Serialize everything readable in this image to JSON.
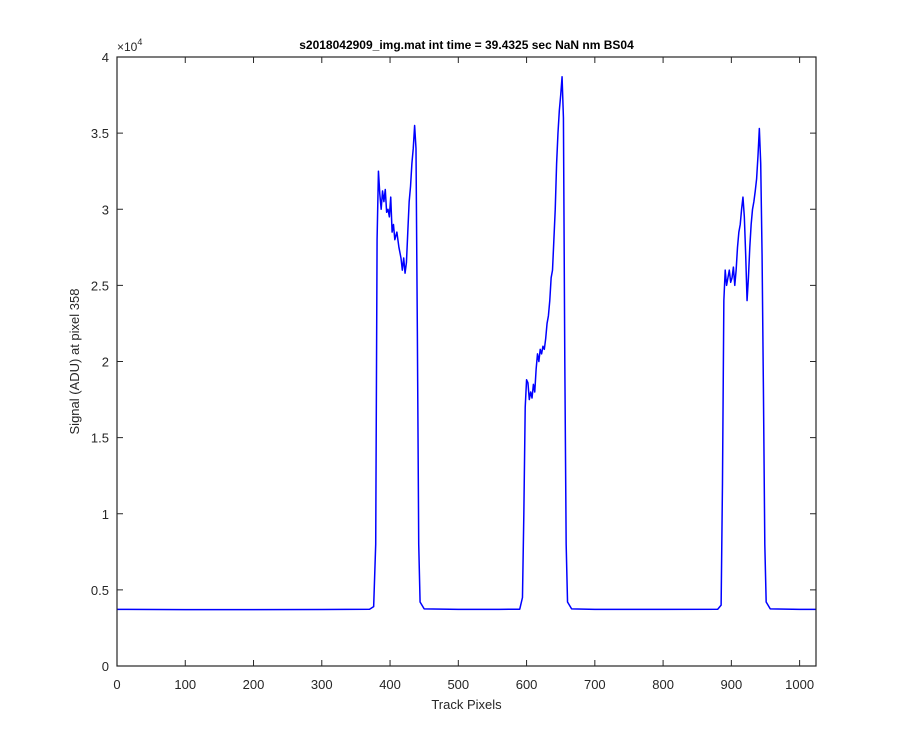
{
  "chart_data": {
    "type": "line",
    "title": "s2018042909_img.mat int time = 39.4325 sec  NaN nm BS04",
    "xlabel": "Track Pixels",
    "ylabel": "Signal (ADU) at pixel 358",
    "xlim": [
      0,
      1024
    ],
    "ylim": [
      0,
      40000
    ],
    "xticks": [
      0,
      100,
      200,
      300,
      400,
      500,
      600,
      700,
      800,
      900,
      1000
    ],
    "xtick_labels": [
      "0",
      "100",
      "200",
      "300",
      "400",
      "500",
      "600",
      "700",
      "800",
      "900",
      "1000"
    ],
    "yticks": [
      0,
      5000,
      10000,
      15000,
      20000,
      25000,
      30000,
      35000,
      40000
    ],
    "ytick_labels": [
      "0",
      "0.5",
      "1",
      "1.5",
      "2",
      "2.5",
      "3",
      "3.5",
      "4"
    ],
    "y_multiplier_base": "×10",
    "y_multiplier_exp": "4",
    "grid": false,
    "line_color": "#0000ff",
    "series": [
      {
        "values": [
          [
            0,
            3720
          ],
          [
            100,
            3700
          ],
          [
            200,
            3700
          ],
          [
            300,
            3710
          ],
          [
            370,
            3730
          ],
          [
            376,
            3900
          ],
          [
            379,
            8000
          ],
          [
            381,
            28000
          ],
          [
            383,
            32500
          ],
          [
            385,
            31000
          ],
          [
            387,
            30000
          ],
          [
            389,
            31200
          ],
          [
            391,
            30500
          ],
          [
            393,
            31300
          ],
          [
            395,
            29800
          ],
          [
            397,
            30000
          ],
          [
            399,
            29500
          ],
          [
            401,
            30800
          ],
          [
            403,
            28500
          ],
          [
            405,
            29000
          ],
          [
            407,
            28000
          ],
          [
            410,
            28500
          ],
          [
            413,
            27500
          ],
          [
            416,
            26800
          ],
          [
            418,
            26000
          ],
          [
            420,
            26800
          ],
          [
            422,
            25800
          ],
          [
            424,
            26500
          ],
          [
            426,
            28500
          ],
          [
            428,
            30500
          ],
          [
            430,
            31500
          ],
          [
            432,
            33000
          ],
          [
            434,
            34000
          ],
          [
            436,
            35500
          ],
          [
            438,
            34000
          ],
          [
            440,
            22000
          ],
          [
            442,
            8000
          ],
          [
            444,
            4200
          ],
          [
            450,
            3750
          ],
          [
            500,
            3720
          ],
          [
            560,
            3720
          ],
          [
            590,
            3730
          ],
          [
            594,
            4500
          ],
          [
            596,
            10000
          ],
          [
            598,
            17000
          ],
          [
            600,
            18800
          ],
          [
            602,
            18600
          ],
          [
            604,
            17500
          ],
          [
            606,
            18000
          ],
          [
            608,
            17600
          ],
          [
            610,
            18500
          ],
          [
            612,
            18000
          ],
          [
            614,
            19500
          ],
          [
            616,
            20500
          ],
          [
            618,
            20000
          ],
          [
            620,
            20800
          ],
          [
            622,
            20500
          ],
          [
            624,
            21000
          ],
          [
            626,
            20800
          ],
          [
            628,
            21500
          ],
          [
            630,
            22500
          ],
          [
            632,
            23000
          ],
          [
            634,
            24000
          ],
          [
            636,
            25500
          ],
          [
            638,
            26000
          ],
          [
            640,
            28000
          ],
          [
            642,
            30000
          ],
          [
            644,
            33000
          ],
          [
            646,
            35000
          ],
          [
            648,
            36500
          ],
          [
            650,
            37500
          ],
          [
            652,
            38700
          ],
          [
            654,
            36000
          ],
          [
            656,
            20000
          ],
          [
            658,
            8000
          ],
          [
            660,
            4200
          ],
          [
            666,
            3750
          ],
          [
            700,
            3720
          ],
          [
            800,
            3720
          ],
          [
            880,
            3730
          ],
          [
            885,
            4000
          ],
          [
            887,
            12000
          ],
          [
            889,
            24000
          ],
          [
            891,
            26000
          ],
          [
            893,
            25000
          ],
          [
            895,
            25500
          ],
          [
            897,
            26000
          ],
          [
            899,
            25200
          ],
          [
            901,
            25500
          ],
          [
            903,
            26200
          ],
          [
            905,
            25000
          ],
          [
            907,
            26000
          ],
          [
            909,
            27500
          ],
          [
            911,
            28500
          ],
          [
            913,
            29000
          ],
          [
            915,
            30000
          ],
          [
            917,
            30800
          ],
          [
            919,
            29500
          ],
          [
            921,
            27000
          ],
          [
            923,
            24000
          ],
          [
            925,
            25500
          ],
          [
            927,
            27500
          ],
          [
            929,
            29000
          ],
          [
            931,
            30000
          ],
          [
            933,
            30500
          ],
          [
            935,
            31200
          ],
          [
            937,
            32000
          ],
          [
            939,
            33500
          ],
          [
            941,
            35300
          ],
          [
            943,
            33000
          ],
          [
            945,
            27000
          ],
          [
            947,
            18000
          ],
          [
            949,
            8000
          ],
          [
            951,
            4200
          ],
          [
            957,
            3750
          ],
          [
            1000,
            3720
          ],
          [
            1024,
            3720
          ]
        ]
      }
    ]
  }
}
